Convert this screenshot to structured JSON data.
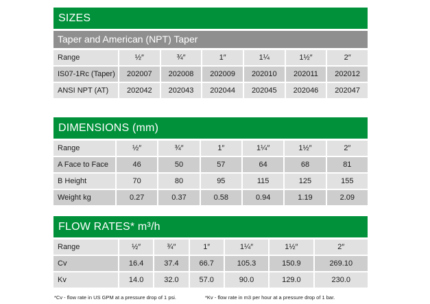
{
  "sizes": {
    "title": "SIZES",
    "subtitle": "Taper and American (NPT) Taper",
    "rows": [
      [
        "Range",
        "½″",
        "¾″",
        "1″",
        "1¼",
        "1½″",
        "2″"
      ],
      [
        "IS07-1Rc (Taper)",
        "202007",
        "202008",
        "202009",
        "202010",
        "202011",
        "202012"
      ],
      [
        "ANSI NPT (AT)",
        "202042",
        "202043",
        "202044",
        "202045",
        "202046",
        "202047"
      ]
    ]
  },
  "dimensions": {
    "title": "DIMENSIONS (mm)",
    "rows": [
      [
        "Range",
        "½″",
        "¾″",
        "1″",
        "1¼″",
        "1½″",
        "2″"
      ],
      [
        "A Face to Face",
        "46",
        "50",
        "57",
        "64",
        "68",
        "81"
      ],
      [
        "B Height",
        "70",
        "80",
        "95",
        "115",
        "125",
        "155"
      ],
      [
        "Weight kg",
        "0.27",
        "0.37",
        "0.58",
        "0.94",
        "1.19",
        "2.09"
      ]
    ]
  },
  "flow_rates": {
    "title": "FLOW RATES* m³/h",
    "rows": [
      [
        "Range",
        "½″",
        "¾″",
        "1″",
        "1¼″",
        "1½″",
        "2″"
      ],
      [
        "Cv",
        "16.4",
        "37.4",
        "66.7",
        "105.3",
        "150.9",
        "269.10"
      ],
      [
        "Kv",
        "14.0",
        "32.0",
        "57.0",
        "90.0",
        "129.0",
        "230.0"
      ]
    ]
  },
  "footnotes": {
    "cv": "*Cv - flow rate in US GPM at a pressure drop of 1 psi.",
    "kv": "*Kv - flow rate in m3 per hour at a pressure drop of 1 bar."
  }
}
